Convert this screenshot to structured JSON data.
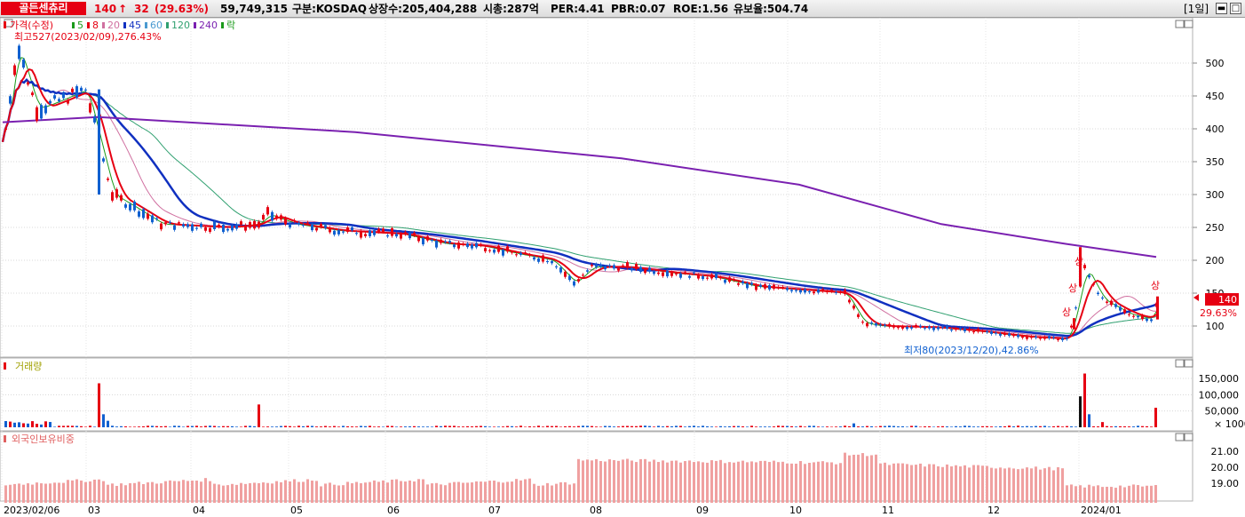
{
  "header": {
    "stock_name": "골든센츄리",
    "price": "140",
    "change_arrow": "↑",
    "change": "32",
    "change_pct": "(29.63%)",
    "volume": "59,749,315",
    "market": "구분:KOSDAQ",
    "listed_shares": "상장수:205,404,288",
    "market_cap": "시총:287억",
    "per": "PER:4.41",
    "pbr": "PBR:0.07",
    "roe": "ROE:1.56",
    "retention": "유보율:504.74",
    "period": "[1일]"
  },
  "price_panel": {
    "legend": [
      {
        "text": "가격(수정)",
        "color": "#e60012"
      },
      {
        "text": "5",
        "color": "#1a9a1a"
      },
      {
        "text": "8",
        "color": "#e60012"
      },
      {
        "text": "20",
        "color": "#d070a0"
      },
      {
        "text": "45",
        "color": "#1030c0"
      },
      {
        "text": "60",
        "color": "#4a9ad0"
      },
      {
        "text": "120",
        "color": "#30a070"
      },
      {
        "text": "240",
        "color": "#7a20b0"
      },
      {
        "text": "락",
        "color": "#1a9a1a"
      }
    ],
    "high_note": "최고527(2023/02/09),276.43%",
    "low_note": "최저80(2023/12/20),42.86%",
    "yaxis": [
      "500",
      "450",
      "400",
      "350",
      "300",
      "250",
      "200",
      "150",
      "100"
    ],
    "current_price": "140",
    "current_pct": "29.63%",
    "limit_up_marks": [
      "상",
      "상",
      "상",
      "상"
    ]
  },
  "volume_panel": {
    "title": "거래량",
    "yaxis": [
      "150,000",
      "100,000",
      "50,000"
    ],
    "unit": "× 1000"
  },
  "foreign_panel": {
    "title": "외국인보유비중",
    "yaxis": [
      "21.00",
      "20.00",
      "19.00"
    ]
  },
  "xaxis": [
    "2023/02/06",
    "03",
    "04",
    "05",
    "06",
    "07",
    "08",
    "09",
    "10",
    "11",
    "12",
    "2024/01"
  ],
  "colors": {
    "up": "#e60012",
    "down": "#1060d0",
    "ma5": "#1a9a1a",
    "ma8": "#e60012",
    "ma20": "#d070a0",
    "ma45": "#1030c0",
    "ma120": "#30a070",
    "ma240": "#7a20b0",
    "foreign_bar": "#f0a0a0"
  },
  "chart_data": {
    "type": "line",
    "x_label_months": [
      "2023/02/06",
      "03",
      "04",
      "05",
      "06",
      "07",
      "08",
      "09",
      "10",
      "11",
      "12",
      "2024/01"
    ],
    "price_close_approx": {
      "x": [
        "2023-02-06",
        "2023-02-09",
        "2023-02-20",
        "2023-03-02",
        "2023-03-06",
        "2023-03-15",
        "2023-04-01",
        "2023-04-20",
        "2023-05-05",
        "2023-06-01",
        "2023-06-25",
        "2023-07-15",
        "2023-07-25",
        "2023-08-10",
        "2023-09-01",
        "2023-09-20",
        "2023-10-10",
        "2023-10-20",
        "2023-11-01",
        "2023-11-20",
        "2023-12-01",
        "2023-12-20",
        "2023-12-26",
        "2023-12-28",
        "2024-01-05",
        "2024-01-15",
        "2024-01-25",
        "2024-01-26"
      ],
      "y": [
        380,
        527,
        430,
        460,
        340,
        300,
        255,
        250,
        260,
        240,
        225,
        210,
        195,
        190,
        180,
        175,
        155,
        140,
        110,
        98,
        95,
        80,
        108,
        190,
        135,
        115,
        108,
        140
      ]
    },
    "ma240": {
      "x": [
        "2023-02-06",
        "2023-05-01",
        "2023-08-01",
        "2023-11-01",
        "2024-01-26"
      ],
      "y": [
        410,
        400,
        355,
        270,
        205
      ]
    },
    "ylim": [
      70,
      550
    ]
  }
}
